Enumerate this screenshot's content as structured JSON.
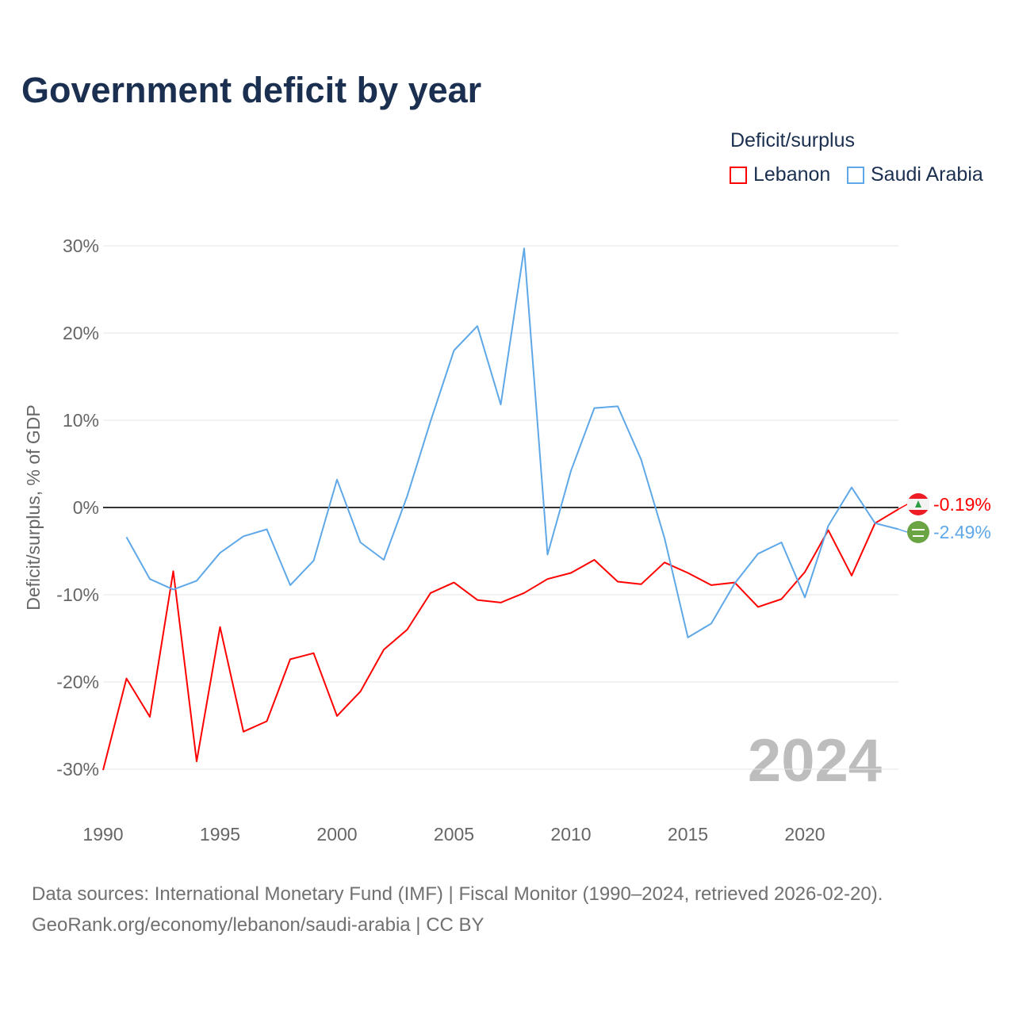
{
  "title": "Government deficit by year",
  "legend_title": "Deficit/surplus",
  "source_line1": "Data sources: International Monetary Fund (IMF) | Fiscal Monitor (1990–2024, retrieved 2026-02-20).",
  "source_line2": "GeoRank.org/economy/lebanon/saudi-arabia | CC BY",
  "chart_data": {
    "type": "line",
    "title": "Government deficit by year",
    "xlabel": "",
    "ylabel": "Deficit/surplus, % of GDP",
    "xlim": [
      1990,
      2024
    ],
    "ylim": [
      -30,
      30
    ],
    "xticks": [
      1990,
      1995,
      2000,
      2005,
      2010,
      2015,
      2020
    ],
    "yticks": [
      30,
      20,
      10,
      0,
      -10,
      -20,
      -30
    ],
    "ytick_labels": [
      "30%",
      "20%",
      "10%",
      "0%",
      "-10%",
      "-20%",
      "-30%"
    ],
    "grid": true,
    "legend_position": "top-right",
    "year_watermark": "2024",
    "series": [
      {
        "name": "Lebanon",
        "color": "#ff0000",
        "end_label": "-0.19%",
        "flag": "lebanon-flag",
        "x": [
          1990,
          1991,
          1992,
          1993,
          1994,
          1995,
          1996,
          1997,
          1998,
          1999,
          2000,
          2001,
          2002,
          2003,
          2004,
          2005,
          2006,
          2007,
          2008,
          2009,
          2010,
          2011,
          2012,
          2013,
          2014,
          2015,
          2016,
          2017,
          2018,
          2019,
          2020,
          2021,
          2022,
          2023,
          2024
        ],
        "values": [
          -30.1,
          -19.6,
          -24,
          -7.3,
          -29.1,
          -13.7,
          -25.7,
          -24.5,
          -17.4,
          -16.7,
          -23.9,
          -21.1,
          -16.3,
          -14,
          -9.8,
          -8.6,
          -10.6,
          -10.9,
          -9.8,
          -8.2,
          -7.5,
          -6,
          -8.5,
          -8.8,
          -6.3,
          -7.5,
          -8.9,
          -8.6,
          -11.4,
          -10.5,
          -7.4,
          -2.6,
          -7.8,
          -1.8,
          -0.19
        ]
      },
      {
        "name": "Saudi Arabia",
        "color": "#5fa8e8",
        "end_label": "-2.49%",
        "flag": "saudi-arabia-flag",
        "x": [
          1991,
          1992,
          1993,
          1994,
          1995,
          1996,
          1997,
          1998,
          1999,
          2000,
          2001,
          2002,
          2003,
          2004,
          2005,
          2006,
          2007,
          2008,
          2009,
          2010,
          2011,
          2012,
          2013,
          2014,
          2015,
          2016,
          2017,
          2018,
          2019,
          2020,
          2021,
          2022,
          2023,
          2024
        ],
        "values": [
          -3.4,
          -8.2,
          -9.4,
          -8.4,
          -5.2,
          -3.3,
          -2.5,
          -8.9,
          -6.1,
          3.2,
          -4,
          -6,
          1.3,
          9.9,
          18,
          20.8,
          11.8,
          29.7,
          -5.4,
          4.2,
          11.4,
          11.6,
          5.5,
          -3.5,
          -14.9,
          -13.3,
          -8.7,
          -5.3,
          -4,
          -10.3,
          -2.1,
          2.3,
          -1.8,
          -2.49
        ]
      }
    ]
  }
}
